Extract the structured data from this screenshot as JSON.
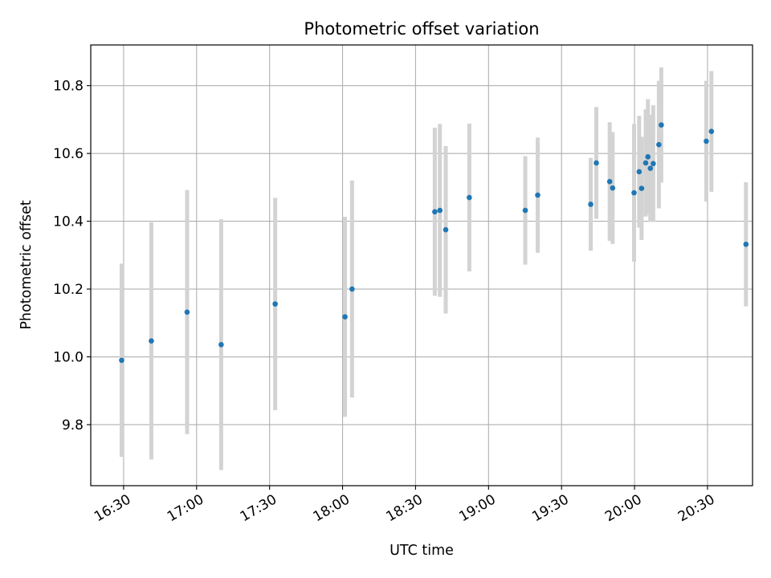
{
  "chart_data": {
    "type": "scatter",
    "title": "Photometric offset variation",
    "xlabel": "UTC time",
    "ylabel": "Photometric offset",
    "x_ticks": [
      "16:30",
      "17:00",
      "17:30",
      "18:00",
      "18:30",
      "19:00",
      "19:30",
      "20:00",
      "20:30"
    ],
    "y_ticks": [
      "9.8",
      "10.0",
      "10.2",
      "10.4",
      "10.6",
      "10.8"
    ],
    "xlim": [
      "16:16.5",
      "20:48.5"
    ],
    "ylim": [
      9.62,
      10.92
    ],
    "grid": true,
    "colors": {
      "point": "#1f77b4",
      "errorbar": "#d3d3d3",
      "grid": "#b0b0b0"
    },
    "series": [
      {
        "points": [
          {
            "x": "16:29.2",
            "y": 9.99,
            "err": 0.285
          },
          {
            "x": "16:41.4",
            "y": 10.047,
            "err": 0.35
          },
          {
            "x": "16:56.1",
            "y": 10.132,
            "err": 0.36
          },
          {
            "x": "17:10.1",
            "y": 10.036,
            "err": 0.37
          },
          {
            "x": "17:32.3",
            "y": 10.156,
            "err": 0.313
          },
          {
            "x": "18:01.0",
            "y": 10.118,
            "err": 0.295
          },
          {
            "x": "18:03.9",
            "y": 10.2,
            "err": 0.32
          },
          {
            "x": "18:37.9",
            "y": 10.428,
            "err": 0.248
          },
          {
            "x": "18:40.0",
            "y": 10.432,
            "err": 0.255
          },
          {
            "x": "18:42.4",
            "y": 10.375,
            "err": 0.247
          },
          {
            "x": "18:52.1",
            "y": 10.47,
            "err": 0.218
          },
          {
            "x": "19:15.1",
            "y": 10.432,
            "err": 0.16
          },
          {
            "x": "19:20.2",
            "y": 10.477,
            "err": 0.17
          },
          {
            "x": "19:42.0",
            "y": 10.45,
            "err": 0.137
          },
          {
            "x": "19:44.3",
            "y": 10.572,
            "err": 0.165
          },
          {
            "x": "19:49.8",
            "y": 10.517,
            "err": 0.175
          },
          {
            "x": "19:51.0",
            "y": 10.498,
            "err": 0.165
          },
          {
            "x": "19:59.8",
            "y": 10.484,
            "err": 0.203
          },
          {
            "x": "20:01.9",
            "y": 10.546,
            "err": 0.165
          },
          {
            "x": "20:02.9",
            "y": 10.497,
            "err": 0.152
          },
          {
            "x": "20:04.6",
            "y": 10.572,
            "err": 0.158
          },
          {
            "x": "20:05.5",
            "y": 10.59,
            "err": 0.17
          },
          {
            "x": "20:06.5",
            "y": 10.556,
            "err": 0.158
          },
          {
            "x": "20:07.7",
            "y": 10.57,
            "err": 0.172
          },
          {
            "x": "20:10.0",
            "y": 10.626,
            "err": 0.188
          },
          {
            "x": "20:11.0",
            "y": 10.684,
            "err": 0.17
          },
          {
            "x": "20:29.5",
            "y": 10.636,
            "err": 0.178
          },
          {
            "x": "20:31.6",
            "y": 10.665,
            "err": 0.178
          },
          {
            "x": "20:45.8",
            "y": 10.332,
            "err": 0.183
          }
        ]
      }
    ]
  }
}
